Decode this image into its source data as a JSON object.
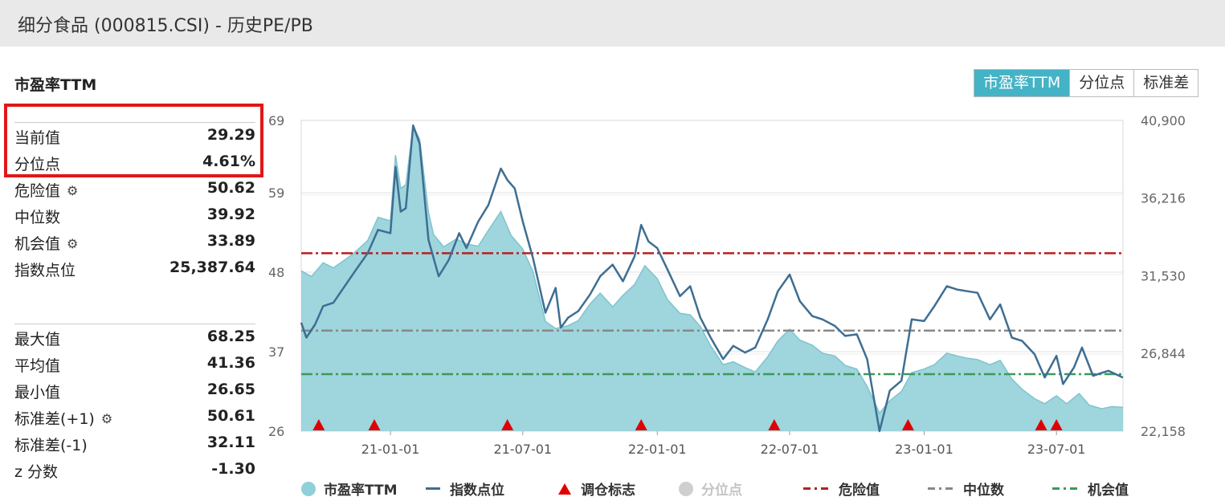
{
  "header": {
    "title": "细分食品 (000815.CSI) - 历史PE/PB"
  },
  "panel": {
    "title": "市盈率TTM",
    "stats_top": [
      {
        "label": "当前值",
        "value": "29.29",
        "gear": false
      },
      {
        "label": "分位点",
        "value": "4.61%",
        "gear": false
      },
      {
        "label": "危险值",
        "value": "50.62",
        "gear": true
      },
      {
        "label": "中位数",
        "value": "39.92",
        "gear": false
      },
      {
        "label": "机会值",
        "value": "33.89",
        "gear": true
      },
      {
        "label": "指数点位",
        "value": "25,387.64",
        "gear": false
      }
    ],
    "stats_bottom": [
      {
        "label": "最大值",
        "value": "68.25",
        "gear": false
      },
      {
        "label": "平均值",
        "value": "41.36",
        "gear": false
      },
      {
        "label": "最小值",
        "value": "26.65",
        "gear": false
      },
      {
        "label": "标准差(+1)",
        "value": "50.61",
        "gear": true
      },
      {
        "label": "标准差(-1)",
        "value": "32.11",
        "gear": false
      },
      {
        "label": "z 分数",
        "value": "-1.30",
        "gear": false
      }
    ],
    "gear_icon": "⚙"
  },
  "tabs": [
    {
      "label": "市盈率TTM",
      "active": true
    },
    {
      "label": "分位点",
      "active": false
    },
    {
      "label": "标准差",
      "active": false
    }
  ],
  "legend": [
    {
      "label": "市盈率TTM",
      "marker": "dot",
      "color": "#8fd0d9",
      "disabled": false
    },
    {
      "label": "指数点位",
      "marker": "line",
      "color": "#3e6e92",
      "disabled": false
    },
    {
      "label": "调仓标志",
      "marker": "triangle",
      "color": "#e00000",
      "disabled": false
    },
    {
      "label": "分位点",
      "marker": "dot",
      "color": "#cfcfcf",
      "disabled": true
    },
    {
      "label": "危险值",
      "marker": "dash",
      "color": "#b22222",
      "disabled": false
    },
    {
      "label": "中位数",
      "marker": "dash",
      "color": "#888888",
      "disabled": false
    },
    {
      "label": "机会值",
      "marker": "dash",
      "color": "#3a9a5a",
      "disabled": false
    }
  ],
  "colors": {
    "accent": "#45b3c6",
    "pe_area": "#9fd5dc",
    "pe_line": "#7fc4ce",
    "index_line": "#3e6e92",
    "danger": "#b22222",
    "median": "#888888",
    "opportunity": "#3a9a5a",
    "marker": "#e00000",
    "highlight": "#e01818"
  },
  "chart_data": {
    "type": "area",
    "x_range": [
      "2020-09-01",
      "2023-09-30"
    ],
    "x_tick_labels": [
      "21-01-01",
      "21-07-01",
      "22-01-01",
      "22-07-01",
      "23-01-01",
      "23-07-01"
    ],
    "x_tick_dates": [
      "2021-01-01",
      "2021-07-01",
      "2022-01-01",
      "2022-07-01",
      "2023-01-01",
      "2023-07-01"
    ],
    "y_left_ticks": [
      "26",
      "37",
      "48",
      "59",
      "69"
    ],
    "ylim_left": [
      26,
      69
    ],
    "y_right_ticks": [
      "22,158",
      "26,844",
      "31,530",
      "36,216",
      "40,900"
    ],
    "ylim_right": [
      22158,
      40900
    ],
    "reference_lines": [
      {
        "name": "危险值",
        "value": 50.62
      },
      {
        "name": "中位数",
        "value": 39.92
      },
      {
        "name": "机会值",
        "value": 33.89
      }
    ],
    "series": [
      {
        "name": "市盈率TTM",
        "axis": "left",
        "points": [
          [
            "2020-09-01",
            48.2
          ],
          [
            "2020-09-15",
            47.4
          ],
          [
            "2020-10-01",
            49.3
          ],
          [
            "2020-10-15",
            48.6
          ],
          [
            "2020-11-01",
            49.8
          ],
          [
            "2020-11-15",
            50.9
          ],
          [
            "2020-12-01",
            52.4
          ],
          [
            "2020-12-15",
            55.6
          ],
          [
            "2021-01-01",
            55.1
          ],
          [
            "2021-01-08",
            64.2
          ],
          [
            "2021-01-15",
            59.6
          ],
          [
            "2021-01-22",
            60.1
          ],
          [
            "2021-02-01",
            68.25
          ],
          [
            "2021-02-10",
            66.4
          ],
          [
            "2021-02-22",
            56.3
          ],
          [
            "2021-03-01",
            53.2
          ],
          [
            "2021-03-15",
            51.5
          ],
          [
            "2021-04-01",
            52.6
          ],
          [
            "2021-04-15",
            51.9
          ],
          [
            "2021-05-01",
            51.6
          ],
          [
            "2021-05-15",
            53.8
          ],
          [
            "2021-06-01",
            56.4
          ],
          [
            "2021-06-15",
            53.1
          ],
          [
            "2021-07-01",
            51.2
          ],
          [
            "2021-07-15",
            48.1
          ],
          [
            "2021-08-01",
            41.2
          ],
          [
            "2021-08-15",
            40.2
          ],
          [
            "2021-09-01",
            40.6
          ],
          [
            "2021-09-15",
            41.3
          ],
          [
            "2021-10-01",
            43.6
          ],
          [
            "2021-10-15",
            45.1
          ],
          [
            "2021-11-01",
            43.2
          ],
          [
            "2021-11-15",
            44.8
          ],
          [
            "2021-12-01",
            46.3
          ],
          [
            "2021-12-15",
            48.9
          ],
          [
            "2022-01-01",
            47.1
          ],
          [
            "2022-01-15",
            44.2
          ],
          [
            "2022-02-01",
            42.3
          ],
          [
            "2022-02-15",
            42.1
          ],
          [
            "2022-03-01",
            40.5
          ],
          [
            "2022-03-15",
            37.8
          ],
          [
            "2022-04-01",
            35.2
          ],
          [
            "2022-04-15",
            35.6
          ],
          [
            "2022-05-01",
            34.8
          ],
          [
            "2022-05-15",
            34.2
          ],
          [
            "2022-06-01",
            36.3
          ],
          [
            "2022-06-15",
            38.5
          ],
          [
            "2022-07-01",
            40.1
          ],
          [
            "2022-07-15",
            38.6
          ],
          [
            "2022-08-01",
            37.9
          ],
          [
            "2022-08-15",
            36.8
          ],
          [
            "2022-09-01",
            36.4
          ],
          [
            "2022-09-15",
            35.1
          ],
          [
            "2022-10-01",
            34.6
          ],
          [
            "2022-10-15",
            32.2
          ],
          [
            "2022-11-01",
            28.5
          ],
          [
            "2022-11-15",
            30.2
          ],
          [
            "2022-12-01",
            31.5
          ],
          [
            "2022-12-15",
            34.1
          ],
          [
            "2023-01-01",
            34.6
          ],
          [
            "2023-01-15",
            35.2
          ],
          [
            "2023-02-01",
            36.8
          ],
          [
            "2023-02-15",
            36.4
          ],
          [
            "2023-03-01",
            36.1
          ],
          [
            "2023-03-15",
            35.9
          ],
          [
            "2023-04-01",
            35.2
          ],
          [
            "2023-04-15",
            35.8
          ],
          [
            "2023-05-01",
            33.2
          ],
          [
            "2023-05-15",
            31.8
          ],
          [
            "2023-06-01",
            30.5
          ],
          [
            "2023-06-15",
            29.8
          ],
          [
            "2023-07-01",
            30.9
          ],
          [
            "2023-07-15",
            29.8
          ],
          [
            "2023-08-01",
            31.2
          ],
          [
            "2023-08-15",
            29.6
          ],
          [
            "2023-09-01",
            29.1
          ],
          [
            "2023-09-15",
            29.4
          ],
          [
            "2023-09-30",
            29.29
          ]
        ]
      },
      {
        "name": "指数点位",
        "axis": "right",
        "points": [
          [
            "2020-09-01",
            28700
          ],
          [
            "2020-09-08",
            27800
          ],
          [
            "2020-09-20",
            28600
          ],
          [
            "2020-10-01",
            29700
          ],
          [
            "2020-10-15",
            29900
          ],
          [
            "2020-11-01",
            31000
          ],
          [
            "2020-11-15",
            31900
          ],
          [
            "2020-12-01",
            32900
          ],
          [
            "2020-12-15",
            34300
          ],
          [
            "2021-01-01",
            34100
          ],
          [
            "2021-01-08",
            38100
          ],
          [
            "2021-01-15",
            35400
          ],
          [
            "2021-01-22",
            35600
          ],
          [
            "2021-02-01",
            40600
          ],
          [
            "2021-02-10",
            39500
          ],
          [
            "2021-02-22",
            33700
          ],
          [
            "2021-03-08",
            31500
          ],
          [
            "2021-03-22",
            32500
          ],
          [
            "2021-04-05",
            34100
          ],
          [
            "2021-04-15",
            33200
          ],
          [
            "2021-05-01",
            34800
          ],
          [
            "2021-05-15",
            35800
          ],
          [
            "2021-06-01",
            38000
          ],
          [
            "2021-06-10",
            37300
          ],
          [
            "2021-06-20",
            36800
          ],
          [
            "2021-07-01",
            34800
          ],
          [
            "2021-07-15",
            32600
          ],
          [
            "2021-08-01",
            29300
          ],
          [
            "2021-08-15",
            30800
          ],
          [
            "2021-08-22",
            28400
          ],
          [
            "2021-09-01",
            29000
          ],
          [
            "2021-09-15",
            29400
          ],
          [
            "2021-10-01",
            30400
          ],
          [
            "2021-10-15",
            31500
          ],
          [
            "2021-11-01",
            32200
          ],
          [
            "2021-11-15",
            31200
          ],
          [
            "2021-12-01",
            32700
          ],
          [
            "2021-12-10",
            34600
          ],
          [
            "2021-12-20",
            33600
          ],
          [
            "2022-01-01",
            33200
          ],
          [
            "2022-01-15",
            31900
          ],
          [
            "2022-02-01",
            30300
          ],
          [
            "2022-02-15",
            30900
          ],
          [
            "2022-03-01",
            29000
          ],
          [
            "2022-03-15",
            27800
          ],
          [
            "2022-04-01",
            26500
          ],
          [
            "2022-04-15",
            27300
          ],
          [
            "2022-05-01",
            26900
          ],
          [
            "2022-05-15",
            27200
          ],
          [
            "2022-06-01",
            28900
          ],
          [
            "2022-06-15",
            30600
          ],
          [
            "2022-07-01",
            31600
          ],
          [
            "2022-07-15",
            30000
          ],
          [
            "2022-08-01",
            29100
          ],
          [
            "2022-08-15",
            28900
          ],
          [
            "2022-09-01",
            28500
          ],
          [
            "2022-09-15",
            27900
          ],
          [
            "2022-10-01",
            28000
          ],
          [
            "2022-10-15",
            26500
          ],
          [
            "2022-11-01",
            22158
          ],
          [
            "2022-11-15",
            24600
          ],
          [
            "2022-12-01",
            25200
          ],
          [
            "2022-12-15",
            28900
          ],
          [
            "2023-01-01",
            28800
          ],
          [
            "2023-01-15",
            29700
          ],
          [
            "2023-02-01",
            30900
          ],
          [
            "2023-02-15",
            30700
          ],
          [
            "2023-03-01",
            30600
          ],
          [
            "2023-03-15",
            30500
          ],
          [
            "2023-04-01",
            28900
          ],
          [
            "2023-04-15",
            29800
          ],
          [
            "2023-05-01",
            27800
          ],
          [
            "2023-05-15",
            27600
          ],
          [
            "2023-06-01",
            26800
          ],
          [
            "2023-06-15",
            25400
          ],
          [
            "2023-07-01",
            26700
          ],
          [
            "2023-07-10",
            25000
          ],
          [
            "2023-07-25",
            26000
          ],
          [
            "2023-08-05",
            27200
          ],
          [
            "2023-08-20",
            25500
          ],
          [
            "2023-09-10",
            25800
          ],
          [
            "2023-09-30",
            25387.64
          ]
        ]
      }
    ],
    "rebalance_markers": [
      "2020-09-25",
      "2020-12-10",
      "2021-06-10",
      "2021-12-10",
      "2022-06-10",
      "2022-12-10",
      "2023-06-10",
      "2023-07-01"
    ]
  }
}
